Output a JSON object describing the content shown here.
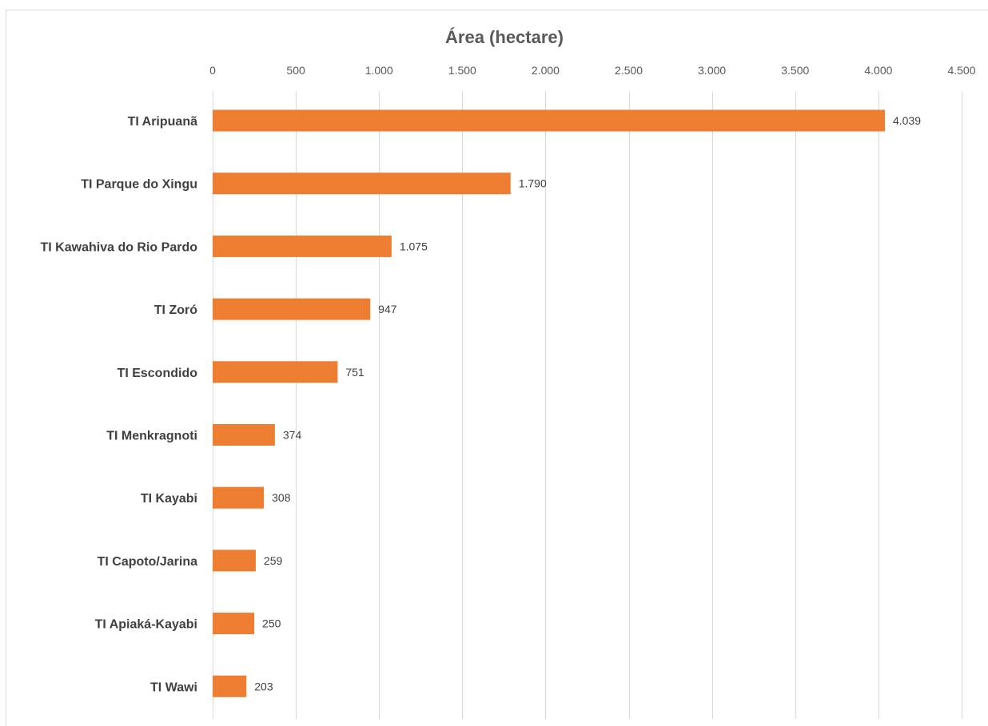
{
  "chart_data": {
    "type": "bar",
    "orientation": "horizontal",
    "title": "Área (hectare)",
    "xlabel": "",
    "ylabel": "",
    "xlim": [
      0,
      4500
    ],
    "tick_values": [
      0,
      500,
      1000,
      1500,
      2000,
      2500,
      3000,
      3500,
      4000,
      4500
    ],
    "tick_labels": [
      "0",
      "500",
      "1.000",
      "1.500",
      "2.000",
      "2.500",
      "3.000",
      "3.500",
      "4.000",
      "4.500"
    ],
    "categories": [
      "TI Aripuanã",
      "TI Parque do Xingu",
      "TI Kawahiva do Rio Pardo",
      "TI Zoró",
      "TI Escondido",
      "TI Menkragnoti",
      "TI Kayabi",
      "TI Capoto/Jarina",
      "TI Apiaká-Kayabi",
      "TI Wawi"
    ],
    "values": [
      4039,
      1790,
      1075,
      947,
      751,
      374,
      308,
      259,
      250,
      203
    ],
    "value_labels": [
      "4.039",
      "1.790",
      "1.075",
      "947",
      "751",
      "374",
      "308",
      "259",
      "250",
      "203"
    ],
    "bar_color": "#ED7D31",
    "grid": true,
    "legend": "none"
  }
}
